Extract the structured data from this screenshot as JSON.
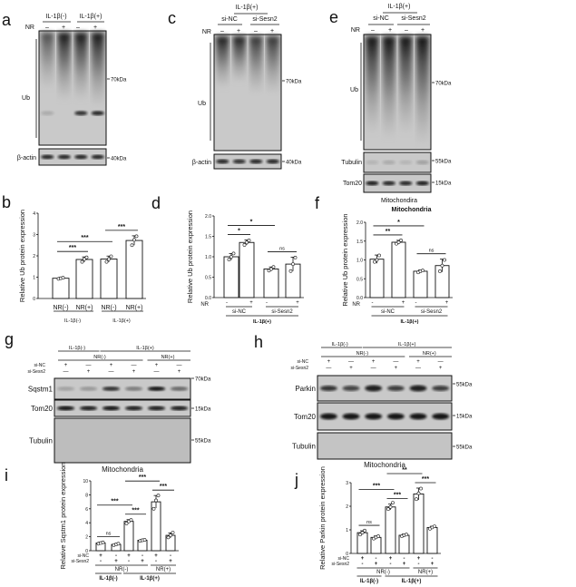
{
  "panels": {
    "a": "a",
    "b": "b",
    "c": "c",
    "d": "d",
    "e": "e",
    "f": "f",
    "g": "g",
    "h": "h",
    "i": "i",
    "j": "j"
  },
  "blots": {
    "a": {
      "groups": [
        "IL-1β(-)",
        "IL-1β(+)"
      ],
      "nr_label": "NR",
      "nr_signs": [
        "–",
        "+",
        "–",
        "+"
      ],
      "rows": [
        "Ub",
        "β-actin"
      ],
      "markers": [
        "70kDa",
        "40kDa"
      ]
    },
    "c": {
      "title": "IL-1β(+)",
      "groups": [
        "si-NC",
        "si-Sesn2"
      ],
      "nr_label": "NR",
      "nr_signs": [
        "–",
        "+",
        "–",
        "+"
      ],
      "rows": [
        "Ub",
        "β-actin"
      ],
      "markers": [
        "70kDa",
        "40kDa"
      ]
    },
    "e": {
      "title": "IL-1β(+)",
      "groups": [
        "si-NC",
        "si-Sesn2"
      ],
      "nr_label": "NR",
      "nr_signs": [
        "–",
        "+",
        "–",
        "+"
      ],
      "rows": [
        "Ub",
        "Tubulin",
        "Tom20"
      ],
      "markers": [
        "70kDa",
        "55kDa",
        "15kDa"
      ],
      "caption": "Mitochondira"
    },
    "g": {
      "il_groups": [
        "IL-1β(-)",
        "IL-1β(+)"
      ],
      "nr_groups": [
        "NR(-)",
        "NR(+)"
      ],
      "row_labels": [
        "si-NC",
        "si-Sesn2"
      ],
      "sinc_signs": [
        "+",
        "—",
        "+",
        "—",
        "+",
        "—"
      ],
      "sesn_signs": [
        "—",
        "+",
        "—",
        "+",
        "—",
        "+"
      ],
      "rows": [
        "Sqstm1",
        "Tom20",
        "Tubulin"
      ],
      "markers": [
        "70kDa",
        "15kDa",
        "55kDa"
      ],
      "caption": "Mitochondria"
    },
    "h": {
      "il_groups": [
        "IL-1β(-)",
        "IL-1β(+)"
      ],
      "nr_groups": [
        "NR(-)",
        "NR(+)"
      ],
      "row_labels": [
        "si-NC",
        "si-Sesn2"
      ],
      "sinc_signs": [
        "+",
        "—",
        "+",
        "—",
        "+",
        "—"
      ],
      "sesn_signs": [
        "—",
        "+",
        "—",
        "+",
        "—",
        "+"
      ],
      "rows": [
        "Parkin",
        "Tom20",
        "Tubulin"
      ],
      "markers": [
        "55kDa",
        "15kDa",
        "55kDa"
      ],
      "caption": "Mitochondria"
    }
  },
  "chart_data": [
    {
      "panel": "b",
      "type": "bar",
      "ylabel": "Relative Ub protein expression",
      "ylim": [
        0,
        4
      ],
      "yticks": [
        "0",
        "1",
        "2",
        "3",
        "4"
      ],
      "categories": [
        "NR(-)",
        "NR(+)",
        "NR(-)",
        "NR(+)"
      ],
      "groups": [
        "IL-1β(-)",
        "IL-1β(+)"
      ],
      "values": [
        0.95,
        1.83,
        1.85,
        2.72
      ],
      "errors": [
        0.04,
        0.12,
        0.14,
        0.22
      ],
      "points": [
        [
          0.92,
          0.95,
          0.97
        ],
        [
          1.72,
          1.85,
          1.93
        ],
        [
          1.72,
          1.85,
          1.98
        ],
        [
          2.5,
          2.75,
          2.92
        ]
      ],
      "significance": [
        {
          "from": 0,
          "to": 1,
          "label": "***"
        },
        {
          "from": 0,
          "to": 2,
          "label": "***"
        },
        {
          "from": 2,
          "to": 3,
          "label": "***"
        }
      ]
    },
    {
      "panel": "d",
      "type": "bar",
      "ylabel": "Relative Ub protein expression",
      "ylim": [
        0,
        2
      ],
      "yticks": [
        "0.0",
        "0.5",
        "1.0",
        "1.5",
        "2.0"
      ],
      "nr_label": "NR",
      "nr_signs": [
        "-",
        "+",
        "-",
        "+"
      ],
      "groups": [
        "si-NC",
        "si-Sesn2"
      ],
      "outer_group": "IL-1β(+)",
      "values": [
        1.0,
        1.35,
        0.7,
        0.82
      ],
      "errors": [
        0.08,
        0.06,
        0.05,
        0.17
      ],
      "points": [
        [
          0.93,
          1.0,
          1.08
        ],
        [
          1.29,
          1.35,
          1.4
        ],
        [
          0.66,
          0.7,
          0.75
        ],
        [
          0.65,
          0.82,
          0.98
        ]
      ],
      "significance": [
        {
          "from": 0,
          "to": 1,
          "label": "*"
        },
        {
          "from": 0,
          "to": 2,
          "label": "*"
        },
        {
          "from": 2,
          "to": 3,
          "label": "ns"
        }
      ]
    },
    {
      "panel": "f",
      "type": "bar",
      "title": "Mitochondria",
      "ylabel": "Relative Ub protein expression",
      "ylim": [
        0,
        2
      ],
      "yticks": [
        "0.0",
        "0.5",
        "1.0",
        "1.5",
        "2.0"
      ],
      "nr_label": "NR",
      "nr_signs": [
        "-",
        "+",
        "-",
        "+"
      ],
      "groups": [
        "si-NC",
        "si-Sesn2"
      ],
      "outer_group": "IL-1β(+)",
      "values": [
        1.02,
        1.47,
        0.7,
        0.85
      ],
      "errors": [
        0.11,
        0.05,
        0.03,
        0.17
      ],
      "points": [
        [
          0.95,
          1.0,
          1.12
        ],
        [
          1.43,
          1.47,
          1.52
        ],
        [
          0.67,
          0.7,
          0.72
        ],
        [
          0.7,
          0.85,
          1.0
        ]
      ],
      "significance": [
        {
          "from": 0,
          "to": 1,
          "label": "**"
        },
        {
          "from": 0,
          "to": 2,
          "label": "*"
        },
        {
          "from": 2,
          "to": 3,
          "label": "ns"
        }
      ]
    },
    {
      "panel": "i",
      "type": "bar",
      "ylabel": "Relative Sqstm1 protein expression",
      "ylim": [
        0,
        10
      ],
      "yticks": [
        "0",
        "2",
        "4",
        "6",
        "8",
        "10"
      ],
      "row_labels": [
        "si-NC",
        "si-Sesn2"
      ],
      "sinc_signs": [
        "+",
        "-",
        "+",
        "-",
        "+",
        "-"
      ],
      "sesn_signs": [
        "-",
        "+",
        "-",
        "+",
        "-",
        "+"
      ],
      "nr_groups": [
        "NR(-)",
        "NR(+)"
      ],
      "il_groups": [
        "IL-1β(-)",
        "IL-1β(+)"
      ],
      "values": [
        1.1,
        0.9,
        4.2,
        1.5,
        7.0,
        2.2
      ],
      "errors": [
        0.12,
        0.12,
        0.25,
        0.1,
        0.9,
        0.35
      ],
      "points": [
        [
          1.0,
          1.1,
          1.2
        ],
        [
          0.8,
          0.9,
          1.0
        ],
        [
          3.9,
          4.2,
          4.4
        ],
        [
          1.4,
          1.5,
          1.55
        ],
        [
          6.0,
          7.2,
          7.9
        ],
        [
          1.9,
          2.2,
          2.6
        ]
      ],
      "significance": [
        {
          "from": 0,
          "to": 1,
          "label": "ns"
        },
        {
          "from": 0,
          "to": 2,
          "label": "***"
        },
        {
          "from": 2,
          "to": 3,
          "label": "***"
        },
        {
          "from": 2,
          "to": 4,
          "label": "***"
        },
        {
          "from": 4,
          "to": 5,
          "label": "***"
        }
      ]
    },
    {
      "panel": "j",
      "type": "bar",
      "ylabel": "Relative Parkin protein expression",
      "ylim": [
        0,
        3
      ],
      "yticks": [
        "0",
        "1",
        "2",
        "3"
      ],
      "row_labels": [
        "si-NC",
        "si-Sesn2"
      ],
      "sinc_signs": [
        "+",
        "-",
        "+",
        "-",
        "+",
        "-"
      ],
      "sesn_signs": [
        "-",
        "+",
        "-",
        "+",
        "-",
        "+"
      ],
      "nr_groups": [
        "NR(-)",
        "NR(+)"
      ],
      "il_groups": [
        "IL-1β(-)",
        "IL-1β(+)"
      ],
      "values": [
        0.88,
        0.68,
        1.97,
        0.77,
        2.52,
        1.1
      ],
      "errors": [
        0.08,
        0.06,
        0.12,
        0.05,
        0.25,
        0.05
      ],
      "points": [
        [
          0.8,
          0.88,
          0.97
        ],
        [
          0.63,
          0.68,
          0.73
        ],
        [
          1.88,
          1.97,
          2.15
        ],
        [
          0.73,
          0.77,
          0.8
        ],
        [
          2.3,
          2.55,
          2.75
        ],
        [
          1.05,
          1.1,
          1.15
        ]
      ],
      "significance": [
        {
          "from": 0,
          "to": 1,
          "label": "ns"
        },
        {
          "from": 0,
          "to": 2,
          "label": "***"
        },
        {
          "from": 2,
          "to": 3,
          "label": "***"
        },
        {
          "from": 2,
          "to": 4,
          "label": "**"
        },
        {
          "from": 4,
          "to": 5,
          "label": "***"
        }
      ]
    }
  ]
}
